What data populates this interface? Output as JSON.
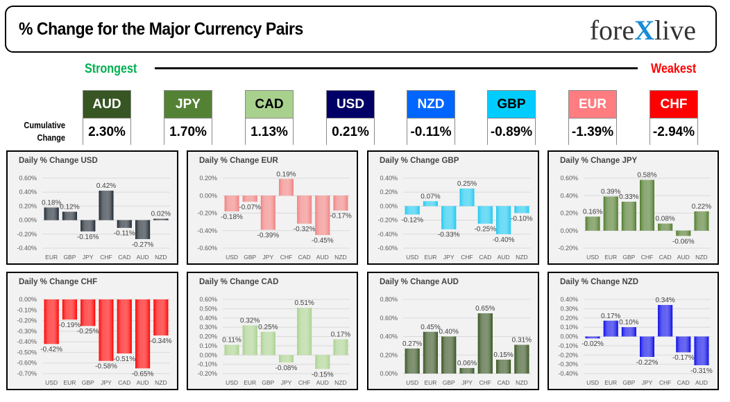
{
  "header": {
    "title": "% Change for the Major Currency Pairs",
    "logo": "forexlive",
    "strongest": "Strongest",
    "weakest": "Weakest",
    "cumulative_label": [
      "Cumulative",
      "Change"
    ]
  },
  "ranking": [
    {
      "currency": "AUD",
      "value": "2.30%",
      "color": "#375623",
      "text": "#fff"
    },
    {
      "currency": "JPY",
      "value": "1.70%",
      "color": "#548235",
      "text": "#fff"
    },
    {
      "currency": "CAD",
      "value": "1.13%",
      "color": "#a9d18e",
      "text": "#000"
    },
    {
      "currency": "USD",
      "value": "0.21%",
      "color": "#000066",
      "text": "#fff"
    },
    {
      "currency": "NZD",
      "value": "-0.11%",
      "color": "#0066ff",
      "text": "#fff"
    },
    {
      "currency": "GBP",
      "value": "-0.89%",
      "color": "#00ccff",
      "text": "#000"
    },
    {
      "currency": "EUR",
      "value": "-1.39%",
      "color": "#ff7c80",
      "text": "#fff"
    },
    {
      "currency": "CHF",
      "value": "-2.94%",
      "color": "#ff0000",
      "text": "#fff"
    }
  ],
  "chart_data": [
    {
      "type": "bar",
      "title": "Daily % Change USD",
      "categories": [
        "EUR",
        "GBP",
        "JPY",
        "CHF",
        "CAD",
        "AUD",
        "NZD"
      ],
      "values": [
        0.18,
        0.12,
        -0.16,
        0.42,
        -0.11,
        -0.27,
        0.02
      ],
      "ylim": [
        -0.4,
        0.6
      ],
      "ystep": 0.2,
      "color": "#1c2530",
      "grid": true
    },
    {
      "type": "bar",
      "title": "Daily % Change EUR",
      "categories": [
        "USD",
        "GBP",
        "JPY",
        "CHF",
        "CAD",
        "AUD",
        "NZD"
      ],
      "values": [
        -0.18,
        -0.07,
        -0.39,
        0.19,
        -0.32,
        -0.45,
        -0.17
      ],
      "ylim": [
        -0.6,
        0.2
      ],
      "ystep": 0.2,
      "color": "#f08080",
      "grid": true
    },
    {
      "type": "bar",
      "title": "Daily % Change GBP",
      "categories": [
        "USD",
        "EUR",
        "JPY",
        "CHF",
        "CAD",
        "AUD",
        "NZD"
      ],
      "values": [
        -0.12,
        0.07,
        -0.33,
        0.25,
        -0.25,
        -0.4,
        -0.1
      ],
      "ylim": [
        -0.6,
        0.4
      ],
      "ystep": 0.2,
      "color": "#1ec8f0",
      "grid": true
    },
    {
      "type": "bar",
      "title": "Daily % Change JPY",
      "categories": [
        "USD",
        "EUR",
        "GBP",
        "CHF",
        "CAD",
        "AUD",
        "NZD"
      ],
      "values": [
        0.16,
        0.39,
        0.33,
        0.58,
        0.08,
        -0.06,
        0.22
      ],
      "ylim": [
        -0.2,
        0.6
      ],
      "ystep": 0.2,
      "color": "#4f7a2a",
      "grid": true
    },
    {
      "type": "bar",
      "title": "Daily % Change CHF",
      "categories": [
        "USD",
        "EUR",
        "GBP",
        "JPY",
        "CAD",
        "AUD",
        "NZD"
      ],
      "values": [
        -0.42,
        -0.19,
        -0.25,
        -0.58,
        -0.51,
        -0.65,
        -0.34
      ],
      "ylim": [
        -0.7,
        0.0
      ],
      "ystep": 0.1,
      "color": "#ff0000",
      "grid": true
    },
    {
      "type": "bar",
      "title": "Daily % Change CAD",
      "categories": [
        "USD",
        "EUR",
        "GBP",
        "JPY",
        "CHF",
        "AUD",
        "NZD"
      ],
      "values": [
        0.11,
        0.32,
        0.25,
        -0.08,
        0.51,
        -0.15,
        0.17
      ],
      "ylim": [
        -0.2,
        0.6
      ],
      "ystep": 0.1,
      "color": "#a9d18e",
      "grid": true
    },
    {
      "type": "bar",
      "title": "Daily % Change AUD",
      "categories": [
        "USD",
        "EUR",
        "GBP",
        "JPY",
        "CHF",
        "CAD",
        "NZD"
      ],
      "values": [
        0.27,
        0.45,
        0.4,
        0.06,
        0.65,
        0.15,
        0.31
      ],
      "ylim": [
        0.0,
        0.8
      ],
      "ystep": 0.2,
      "color": "#36521f",
      "grid": true
    },
    {
      "type": "bar",
      "title": "Daily % Change NZD",
      "categories": [
        "USD",
        "EUR",
        "GBP",
        "JPY",
        "CHF",
        "CAD",
        "AUD"
      ],
      "values": [
        -0.02,
        0.17,
        0.1,
        -0.22,
        0.34,
        -0.17,
        -0.31
      ],
      "ylim": [
        -0.4,
        0.4
      ],
      "ystep": 0.1,
      "color": "#0a0ae8",
      "grid": true
    }
  ]
}
